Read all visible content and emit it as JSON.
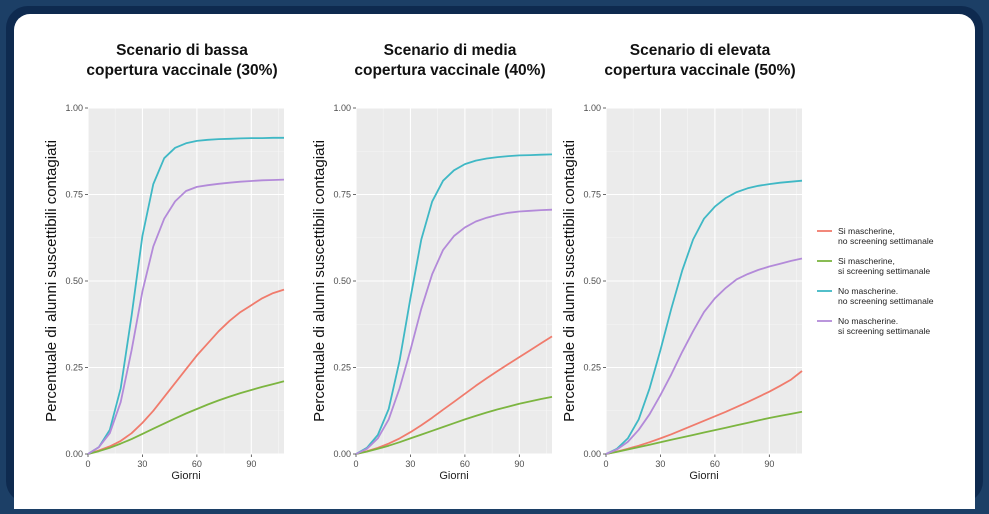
{
  "chart_data": [
    {
      "type": "line",
      "title_lines": [
        "Scenario di bassa",
        "copertura vaccinale (30%)"
      ],
      "xlabel": "Giorni",
      "ylabel": "Percentuale di alunni suscettibili contagiati",
      "xlim": [
        0,
        108
      ],
      "ylim": [
        0,
        1
      ],
      "xticks": [
        0,
        30,
        60,
        90
      ],
      "yticks": [
        0,
        0.25,
        0.5,
        0.75,
        1
      ],
      "ytick_labels": [
        "0.00",
        "0.25",
        "0.50",
        "0.75",
        "1.00"
      ],
      "grid": true,
      "x": [
        0,
        6,
        12,
        18,
        24,
        30,
        36,
        42,
        48,
        54,
        60,
        66,
        72,
        78,
        84,
        90,
        96,
        102,
        108
      ],
      "series": [
        {
          "key": "s1",
          "values": [
            0,
            0.01,
            0.022,
            0.038,
            0.06,
            0.09,
            0.125,
            0.165,
            0.205,
            0.245,
            0.285,
            0.32,
            0.355,
            0.385,
            0.41,
            0.43,
            0.45,
            0.465,
            0.475
          ]
        },
        {
          "key": "s2",
          "values": [
            0,
            0.008,
            0.018,
            0.03,
            0.043,
            0.058,
            0.073,
            0.088,
            0.103,
            0.117,
            0.13,
            0.143,
            0.155,
            0.166,
            0.176,
            0.185,
            0.194,
            0.202,
            0.21
          ]
        },
        {
          "key": "s3",
          "values": [
            0,
            0.02,
            0.07,
            0.19,
            0.4,
            0.63,
            0.78,
            0.855,
            0.885,
            0.898,
            0.905,
            0.908,
            0.91,
            0.911,
            0.912,
            0.913,
            0.913,
            0.914,
            0.914
          ]
        },
        {
          "key": "s4",
          "values": [
            0,
            0.02,
            0.06,
            0.15,
            0.3,
            0.47,
            0.6,
            0.68,
            0.73,
            0.76,
            0.772,
            0.777,
            0.781,
            0.784,
            0.787,
            0.789,
            0.791,
            0.792,
            0.793
          ]
        }
      ]
    },
    {
      "type": "line",
      "title_lines": [
        "Scenario di media",
        "copertura vaccinale (40%)"
      ],
      "xlabel": "Giorni",
      "ylabel": "Percentuale di alunni suscettibili contagiati",
      "xlim": [
        0,
        108
      ],
      "ylim": [
        0,
        1
      ],
      "xticks": [
        0,
        30,
        60,
        90
      ],
      "yticks": [
        0,
        0.25,
        0.5,
        0.75,
        1
      ],
      "ytick_labels": [
        "0.00",
        "0.25",
        "0.50",
        "0.75",
        "1.00"
      ],
      "grid": true,
      "x": [
        0,
        6,
        12,
        18,
        24,
        30,
        36,
        42,
        48,
        54,
        60,
        66,
        72,
        78,
        84,
        90,
        96,
        102,
        108
      ],
      "series": [
        {
          "key": "s1",
          "values": [
            0,
            0.008,
            0.018,
            0.03,
            0.045,
            0.063,
            0.083,
            0.105,
            0.128,
            0.151,
            0.174,
            0.197,
            0.219,
            0.24,
            0.26,
            0.28,
            0.3,
            0.32,
            0.34
          ]
        },
        {
          "key": "s2",
          "values": [
            0,
            0.007,
            0.015,
            0.024,
            0.034,
            0.045,
            0.056,
            0.067,
            0.078,
            0.089,
            0.1,
            0.11,
            0.12,
            0.129,
            0.137,
            0.145,
            0.152,
            0.159,
            0.165
          ]
        },
        {
          "key": "s3",
          "values": [
            0,
            0.018,
            0.055,
            0.13,
            0.27,
            0.45,
            0.62,
            0.73,
            0.79,
            0.82,
            0.838,
            0.848,
            0.854,
            0.858,
            0.861,
            0.863,
            0.864,
            0.865,
            0.866
          ]
        },
        {
          "key": "s4",
          "values": [
            0,
            0.015,
            0.045,
            0.1,
            0.19,
            0.3,
            0.42,
            0.52,
            0.59,
            0.63,
            0.655,
            0.672,
            0.683,
            0.691,
            0.697,
            0.701,
            0.703,
            0.705,
            0.706
          ]
        }
      ]
    },
    {
      "type": "line",
      "title_lines": [
        "Scenario di elevata",
        "copertura vaccinale (50%)"
      ],
      "xlabel": "Giorni",
      "ylabel": "Percentuale di alunni suscettibili contagiati",
      "xlim": [
        0,
        108
      ],
      "ylim": [
        0,
        1
      ],
      "xticks": [
        0,
        30,
        60,
        90
      ],
      "yticks": [
        0,
        0.25,
        0.5,
        0.75,
        1
      ],
      "ytick_labels": [
        "0.00",
        "0.25",
        "0.50",
        "0.75",
        "1.00"
      ],
      "grid": true,
      "x": [
        0,
        6,
        12,
        18,
        24,
        30,
        36,
        42,
        48,
        54,
        60,
        66,
        72,
        78,
        84,
        90,
        96,
        102,
        108
      ],
      "series": [
        {
          "key": "s1",
          "values": [
            0,
            0.007,
            0.015,
            0.024,
            0.034,
            0.045,
            0.057,
            0.07,
            0.083,
            0.096,
            0.109,
            0.122,
            0.136,
            0.15,
            0.165,
            0.18,
            0.197,
            0.215,
            0.24
          ]
        },
        {
          "key": "s2",
          "values": [
            0,
            0.006,
            0.013,
            0.02,
            0.027,
            0.034,
            0.041,
            0.048,
            0.055,
            0.062,
            0.069,
            0.076,
            0.083,
            0.09,
            0.097,
            0.104,
            0.11,
            0.116,
            0.122
          ]
        },
        {
          "key": "s3",
          "values": [
            0,
            0.015,
            0.045,
            0.1,
            0.19,
            0.3,
            0.42,
            0.53,
            0.62,
            0.68,
            0.715,
            0.74,
            0.757,
            0.768,
            0.775,
            0.78,
            0.784,
            0.787,
            0.79
          ]
        },
        {
          "key": "s4",
          "values": [
            0,
            0.013,
            0.035,
            0.07,
            0.115,
            0.17,
            0.23,
            0.295,
            0.355,
            0.41,
            0.45,
            0.48,
            0.505,
            0.52,
            0.532,
            0.542,
            0.55,
            0.558,
            0.565
          ]
        }
      ]
    }
  ],
  "legend": {
    "placement": "right",
    "entries": [
      {
        "key": "s1",
        "line1": "Si mascherine,",
        "line2": "no screening settimanale",
        "color": "#f07b6c"
      },
      {
        "key": "s2",
        "line1": "Si mascherine,",
        "line2": "si screening settimanale",
        "color": "#7cb540"
      },
      {
        "key": "s3",
        "line1": "No mascherine.",
        "line2": "no screening settimanale",
        "color": "#3fb8c5"
      },
      {
        "key": "s4",
        "line1": "No mascherine.",
        "line2": "si screening settimanale",
        "color": "#b38ad9"
      }
    ]
  }
}
